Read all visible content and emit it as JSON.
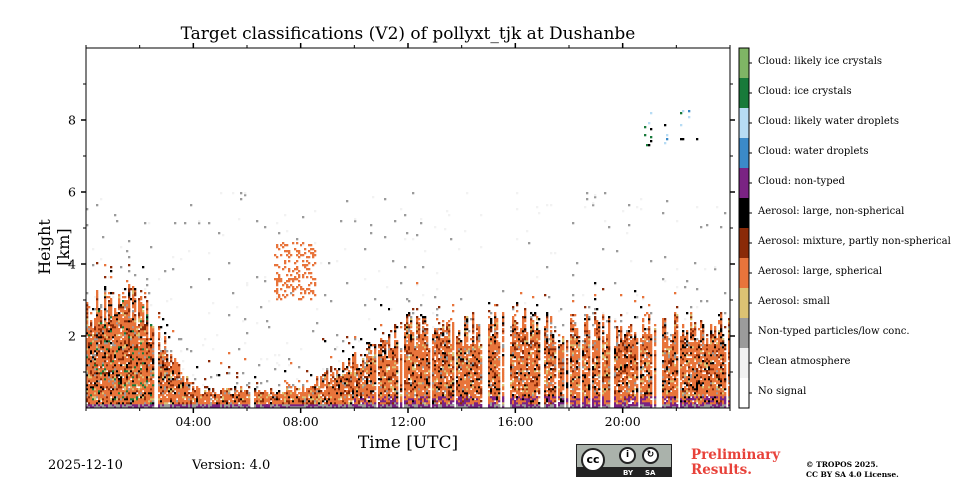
{
  "chart_data": {
    "type": "heatmap",
    "title": "Target classifications (V2) of pollyxt_tjk at Dushanbe",
    "xlabel": "Time [UTC]",
    "ylabel": "Height [km]",
    "xlim_hours": [
      0,
      24
    ],
    "ylim_km": [
      0,
      10
    ],
    "x_ticks": [
      {
        "hour": 4,
        "label": "04:00"
      },
      {
        "hour": 8,
        "label": "08:00"
      },
      {
        "hour": 12,
        "label": "12:00"
      },
      {
        "hour": 16,
        "label": "16:00"
      },
      {
        "hour": 20,
        "label": "20:00"
      }
    ],
    "y_ticks": [
      {
        "km": 2,
        "label": "2"
      },
      {
        "km": 4,
        "label": "4"
      },
      {
        "km": 6,
        "label": "6"
      },
      {
        "km": 8,
        "label": "8"
      }
    ],
    "classes": [
      {
        "label": "Cloud: likely ice crystals",
        "color": "#7fb565"
      },
      {
        "label": "Cloud: ice crystals",
        "color": "#187a3a"
      },
      {
        "label": "Cloud: likely water droplets",
        "color": "#b7dcf4"
      },
      {
        "label": "Cloud: water droplets",
        "color": "#3b8ac8"
      },
      {
        "label": "Cloud: non-typed",
        "color": "#7a2383"
      },
      {
        "label": "Aerosol: large, non-spherical",
        "color": "#000000"
      },
      {
        "label": "Aerosol: mixture, partly non-spherical",
        "color": "#8a2a08"
      },
      {
        "label": "Aerosol: large, spherical",
        "color": "#e8743b"
      },
      {
        "label": "Aerosol: small",
        "color": "#dcc273"
      },
      {
        "label": "Non-typed particles/low conc.",
        "color": "#9b9b9b"
      },
      {
        "label": "Clean atmosphere",
        "color": "#f2f2f2"
      },
      {
        "label": "No signal",
        "color": "#ffffff"
      }
    ],
    "summary": {
      "aerosol_layer_top_km": [
        {
          "hour": 0,
          "km": 2.8
        },
        {
          "hour": 2,
          "km": 3.0
        },
        {
          "hour": 4,
          "km": 0.5
        },
        {
          "hour": 8,
          "km": 0.5
        },
        {
          "hour": 12,
          "km": 2.2
        },
        {
          "hour": 16,
          "km": 2.3
        },
        {
          "hour": 20,
          "km": 2.2
        },
        {
          "hour": 24,
          "km": 2.3
        }
      ],
      "no_signal_gaps_hours": [
        2.6,
        6.2,
        15.7,
        17.0,
        21.3
      ],
      "elevated_aerosol_patch": {
        "hours": [
          7.0,
          8.6
        ],
        "km": [
          3.0,
          4.6
        ]
      },
      "ice_cloud_patches": [
        {
          "hours": [
            20.8,
            22.8
          ],
          "km": [
            7.2,
            8.3
          ]
        }
      ]
    }
  },
  "footer": {
    "date": "2025-12-10",
    "version": "Version: 4.0",
    "license_badge": {
      "cc": "cc",
      "by": "BY",
      "sa": "SA"
    },
    "preliminary_line1": "Preliminary",
    "preliminary_line2": "Results.",
    "copyright_line1": "© TROPOS 2025.",
    "copyright_line2": "CC BY SA 4.0 License."
  },
  "colors": {
    "preliminary_text": "#e8423a"
  }
}
